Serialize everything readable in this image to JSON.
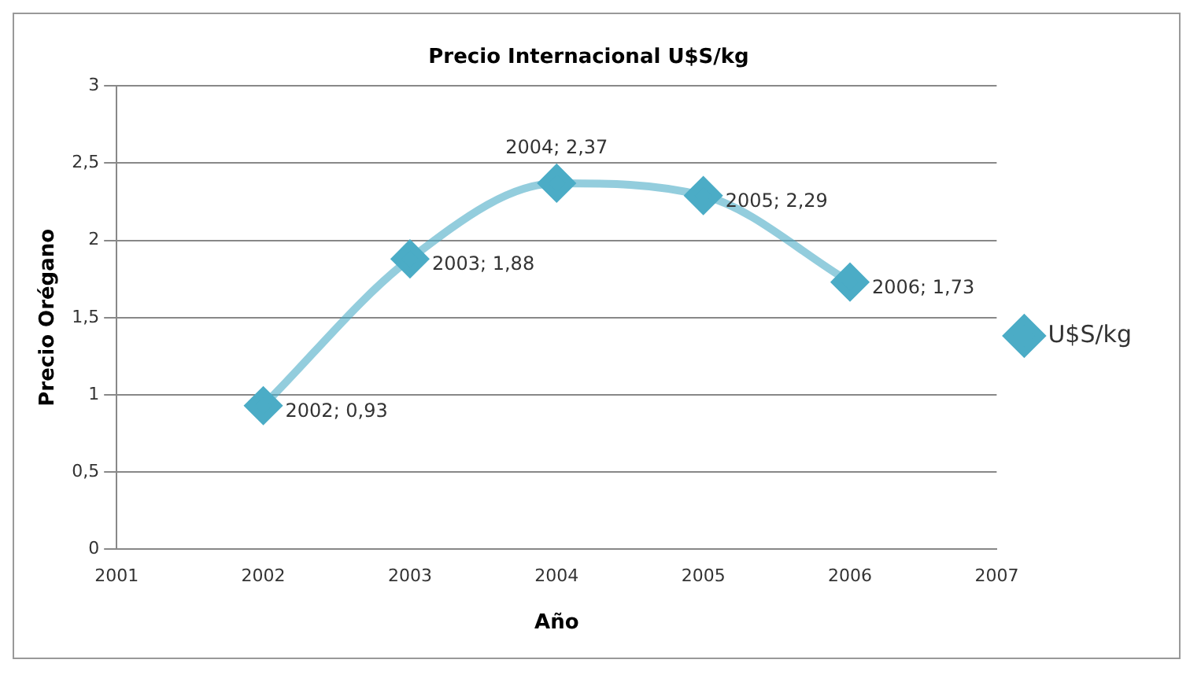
{
  "chart_data": {
    "type": "line",
    "title": "Precio Internacional U$S/kg",
    "xlabel": "Año",
    "ylabel": "Precio Orégano",
    "x": [
      2002,
      2003,
      2004,
      2005,
      2006
    ],
    "series": [
      {
        "name": "U$S/kg",
        "color": "#4bacc6",
        "values": [
          0.93,
          1.88,
          2.37,
          2.29,
          1.73
        ],
        "value_labels": [
          "2002; 0,93",
          "2003; 1,88",
          "2004; 2,37",
          "2005; 2,29",
          "2006; 1,73"
        ]
      }
    ],
    "xlim": [
      2001,
      2007
    ],
    "xticks": [
      2001,
      2002,
      2003,
      2004,
      2005,
      2006,
      2007
    ],
    "ylim": [
      0,
      3
    ],
    "yticks": [
      0,
      {
        "value": 0.5,
        "label": "0,5"
      },
      1,
      {
        "value": 1.5,
        "label": "1,5"
      },
      2,
      {
        "value": 2.5,
        "label": "2,5"
      },
      3
    ],
    "grid": "y",
    "legend": "right",
    "marker": "diamond",
    "line_style": "solid"
  }
}
